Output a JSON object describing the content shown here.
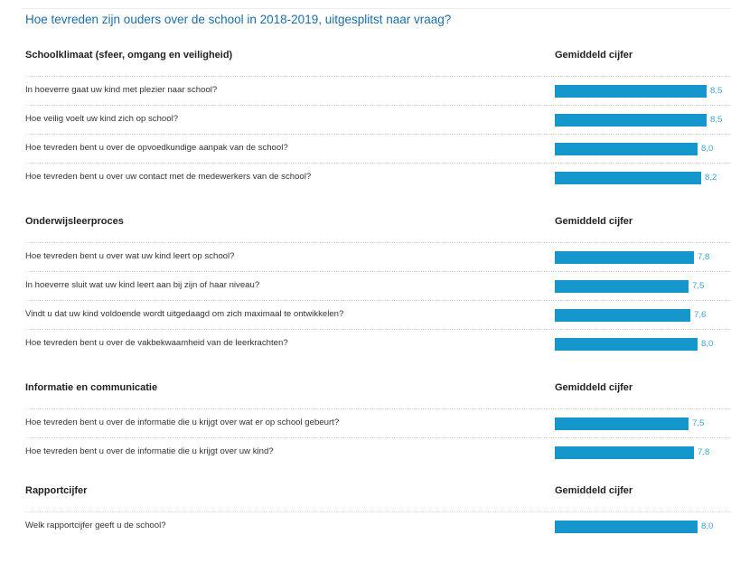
{
  "title": "Hoe tevreden zijn ouders over de school in 2018-2019, uitgesplitst naar vraag?",
  "chart_data": {
    "type": "bar",
    "orientation": "horizontal",
    "title": "Hoe tevreden zijn ouders over de school in 2018-2019, uitgesplitst naar vraag?",
    "value_label": "Gemiddeld cijfer",
    "xlim": [
      0,
      10
    ],
    "groups": [
      {
        "name": "Schoolklimaat (sfeer, omgang en veiligheid)",
        "column_label": "Gemiddeld cijfer",
        "items": [
          {
            "question": "In hoeverre gaat uw kind met plezier naar school?",
            "value": 8.5,
            "label": "8,5"
          },
          {
            "question": "Hoe veilig voelt uw kind zich op school?",
            "value": 8.5,
            "label": "8,5"
          },
          {
            "question": "Hoe tevreden bent u over de opvoedkundige aanpak van de school?",
            "value": 8.0,
            "label": "8,0"
          },
          {
            "question": "Hoe tevreden bent u over uw contact met de medewerkers van de school?",
            "value": 8.2,
            "label": "8,2"
          }
        ]
      },
      {
        "name": "Onderwijsleerproces",
        "column_label": "Gemiddeld cijfer",
        "items": [
          {
            "question": "Hoe tevreden bent u over wat uw kind leert op school?",
            "value": 7.8,
            "label": "7,8"
          },
          {
            "question": "In hoeverre sluit wat uw kind leert aan bij zijn of haar niveau?",
            "value": 7.5,
            "label": "7,5"
          },
          {
            "question": "Vindt u dat uw kind voldoende wordt uitgedaagd om zich maximaal te ontwikkelen?",
            "value": 7.6,
            "label": "7,6"
          },
          {
            "question": "Hoe tevreden bent u over de vakbekwaamheid van de leerkrachten?",
            "value": 8.0,
            "label": "8,0"
          }
        ]
      },
      {
        "name": "Informatie en communicatie",
        "column_label": "Gemiddeld cijfer",
        "items": [
          {
            "question": "Hoe tevreden bent u over de informatie die u krijgt over wat er op school gebeurt?",
            "value": 7.5,
            "label": "7,5"
          },
          {
            "question": "Hoe tevreden bent u over de informatie die u krijgt over uw kind?",
            "value": 7.8,
            "label": "7,8"
          }
        ]
      },
      {
        "name": "Rapportcijfer",
        "column_label": "Gemiddeld cijfer",
        "items": [
          {
            "question": "Welk rapportcijfer geeft u de school?",
            "value": 8.0,
            "label": "8,0"
          }
        ]
      }
    ],
    "bar_color": "#1597cd",
    "value_label_color": "#3aa6d8"
  }
}
